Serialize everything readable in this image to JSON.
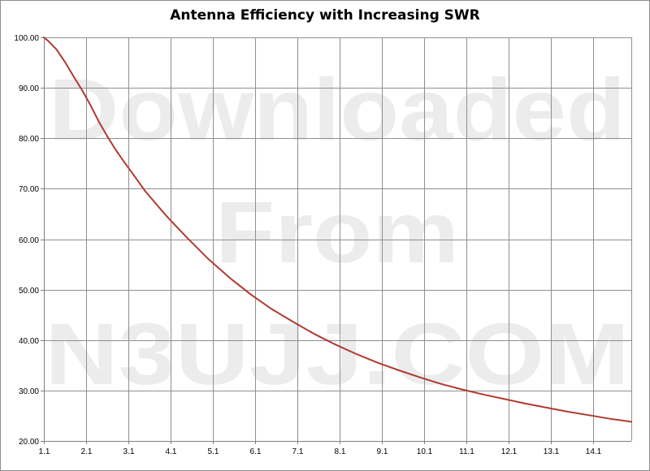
{
  "chart_data": {
    "type": "line",
    "title": "Antenna Efficiency with Increasing SWR",
    "xlabel": "",
    "ylabel": "",
    "xlim": [
      1.1,
      15.0
    ],
    "ylim": [
      20,
      100
    ],
    "y_ticks": [
      20,
      30,
      40,
      50,
      60,
      70,
      80,
      90,
      100
    ],
    "y_tick_labels": [
      "20.00",
      "30.00",
      "40.00",
      "50.00",
      "60.00",
      "70.00",
      "80.00",
      "90.00",
      "100.00"
    ],
    "x_ticks": [
      1.1,
      2.1,
      3.1,
      4.1,
      5.1,
      6.1,
      7.1,
      8.1,
      9.1,
      10.1,
      11.1,
      12.1,
      13.1,
      14.1
    ],
    "x_tick_labels": [
      "1.1",
      "2.1",
      "3.1",
      "4.1",
      "5.1",
      "6.1",
      "7.1",
      "8.1",
      "9.1",
      "10.1",
      "11.1",
      "12.1",
      "13.1",
      "14.1"
    ],
    "grid": true,
    "legend": "none",
    "series": [
      {
        "color": "#b03a32",
        "x": [
          1.1,
          1.2,
          1.4,
          1.6,
          1.8,
          2.0,
          2.2,
          2.4,
          2.6,
          2.8,
          3.0,
          3.2,
          3.5,
          4.0,
          4.5,
          5.0,
          5.5,
          6.0,
          6.5,
          7.0,
          7.5,
          8.0,
          8.5,
          9.0,
          9.5,
          10.0,
          10.5,
          11.0,
          11.5,
          12.0,
          12.5,
          13.0,
          13.5,
          14.0,
          14.5,
          15.0
        ],
        "y": [
          100.0,
          99.3,
          97.6,
          95.1,
          92.3,
          89.6,
          86.6,
          83.3,
          80.4,
          77.7,
          75.3,
          73.0,
          69.5,
          64.6,
          60.2,
          56.0,
          52.3,
          49.0,
          46.1,
          43.6,
          41.2,
          39.1,
          37.2,
          35.5,
          34.0,
          32.6,
          31.3,
          30.2,
          29.2,
          28.3,
          27.4,
          26.6,
          25.8,
          25.1,
          24.4,
          23.8
        ]
      }
    ],
    "watermark": [
      "Downloaded",
      "From",
      "N3UJJ.COM"
    ]
  }
}
